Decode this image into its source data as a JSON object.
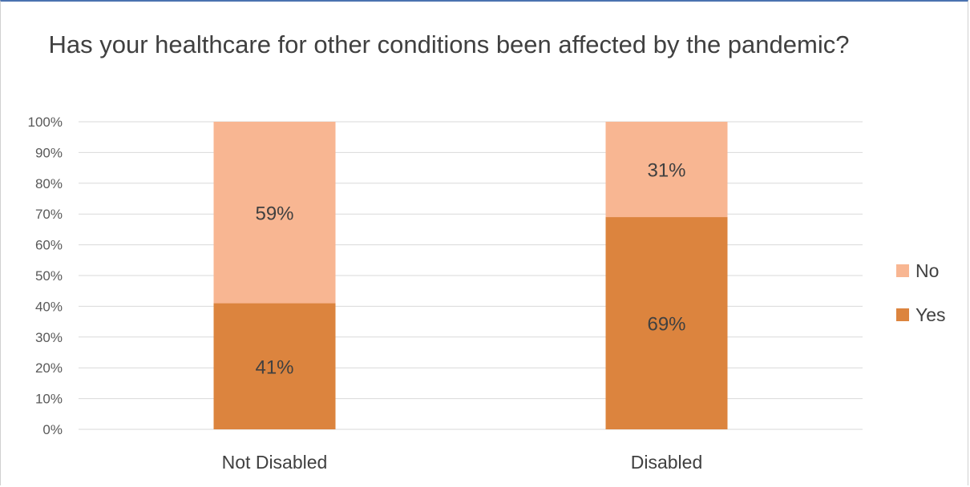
{
  "chart_data": {
    "type": "bar",
    "stacked": true,
    "title": "Has your healthcare for other conditions been affected by the pandemic?",
    "categories": [
      "Not Disabled",
      "Disabled"
    ],
    "series": [
      {
        "name": "Yes",
        "values": [
          41,
          69
        ],
        "labels": [
          "41%",
          "69%"
        ],
        "color": "#dc843e"
      },
      {
        "name": "No",
        "values": [
          59,
          31
        ],
        "labels": [
          "59%",
          "31%"
        ],
        "color": "#f8b692"
      }
    ],
    "ylim": [
      0,
      100
    ],
    "yticks": [
      0,
      10,
      20,
      30,
      40,
      50,
      60,
      70,
      80,
      90,
      100
    ],
    "ytick_labels": [
      "0%",
      "10%",
      "20%",
      "30%",
      "40%",
      "50%",
      "60%",
      "70%",
      "80%",
      "90%",
      "100%"
    ],
    "legend_order": [
      "No",
      "Yes"
    ],
    "legend_position": "right",
    "grid": true
  }
}
